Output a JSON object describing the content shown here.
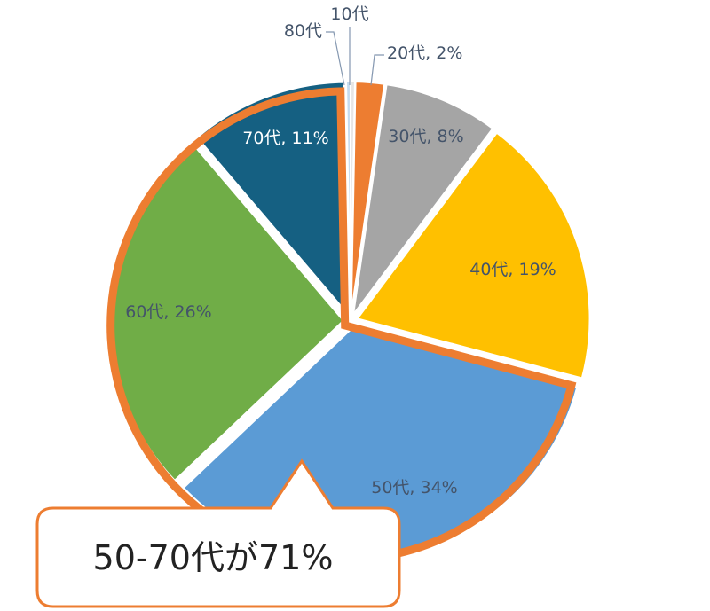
{
  "chart_data": {
    "type": "pie",
    "slices": [
      {
        "name": "10代",
        "value": 0.3,
        "label": "10代",
        "color": "#e7e6e6"
      },
      {
        "name": "20代",
        "value": 2,
        "label": "20代, 2%",
        "color": "#ed7d31"
      },
      {
        "name": "30代",
        "value": 8,
        "label": "30代, 8%",
        "color": "#a5a5a5"
      },
      {
        "name": "40代",
        "value": 19,
        "label": "40代, 19%",
        "color": "#ffc000"
      },
      {
        "name": "50代",
        "value": 34,
        "label": "50代, 34%",
        "color": "#5b9bd5"
      },
      {
        "name": "60代",
        "value": 26,
        "label": "60代, 26%",
        "color": "#70ad47"
      },
      {
        "name": "70代",
        "value": 11,
        "label": "70代, 11%",
        "color": "#156082"
      },
      {
        "name": "80代",
        "value": 0.3,
        "label": "80代",
        "color": "#c5dcf0"
      }
    ],
    "highlight": {
      "slices": [
        "50代",
        "60代",
        "70代"
      ],
      "color": "#ed7d31"
    }
  },
  "callout": {
    "text": "50-70代が71%",
    "border_color": "#ed7d31"
  }
}
